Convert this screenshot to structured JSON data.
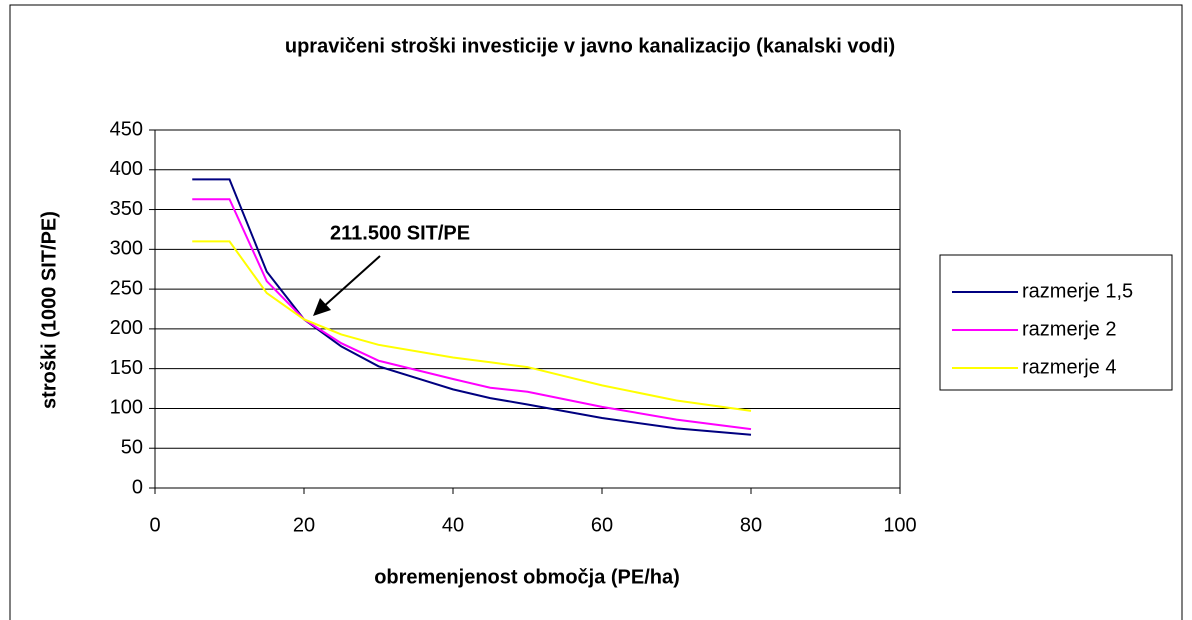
{
  "chart_data": {
    "type": "line",
    "title": "upravičeni stroški investicije v javno kanalizacijo (kanalski vodi)",
    "x_label": "obremenjenost območja (PE/ha)",
    "y_label": "stroški (1000 SIT/PE)",
    "annotation": "211.500 SIT/PE",
    "x": [
      5,
      10,
      15,
      20,
      25,
      30,
      40,
      45,
      50,
      60,
      70,
      80
    ],
    "series": [
      {
        "name": "razmerje 1,5",
        "color": "#000080",
        "values": [
          388,
          388,
          272,
          212,
          178,
          153,
          124,
          113,
          105,
          88,
          75,
          67
        ]
      },
      {
        "name": "razmerje 2",
        "color": "#ff00ff",
        "values": [
          363,
          363,
          260,
          212,
          182,
          160,
          137,
          126,
          121,
          102,
          86,
          74
        ]
      },
      {
        "name": "razmerje 4",
        "color": "#ffff00",
        "values": [
          310,
          310,
          245,
          212,
          193,
          180,
          164,
          158,
          152,
          129,
          110,
          97
        ]
      }
    ],
    "xlim": [
      0,
      100
    ],
    "xticks": [
      0,
      20,
      40,
      60,
      80,
      100
    ],
    "ylim": [
      0,
      450
    ],
    "yticks": [
      0,
      50,
      100,
      150,
      200,
      250,
      300,
      350,
      400,
      450
    ],
    "grid": true,
    "legend": "right"
  }
}
